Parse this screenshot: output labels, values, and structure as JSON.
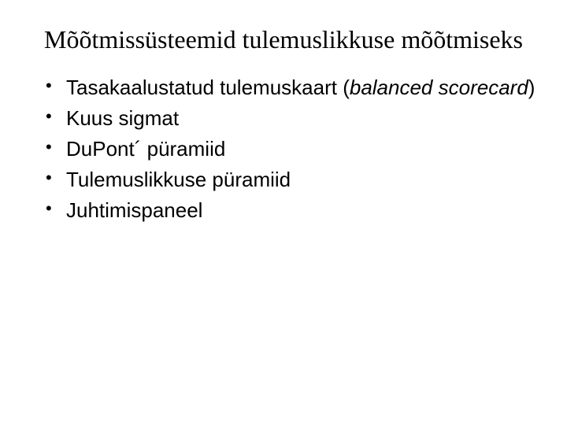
{
  "title": "Mõõtmissüsteemid tulemuslikkuse mõõtmiseks",
  "bullets": {
    "b0_leading": "Tasakaalustatud tulemuskaart (",
    "b0_italic": "balanced scorecard",
    "b0_trailing": ")",
    "b1": "Kuus sigmat",
    "b2": "DuPont´ püramiid",
    "b3": "Tulemuslikkuse püramiid",
    "b4": "Juhtimispaneel"
  },
  "style": {
    "background_color": "#ffffff",
    "text_color": "#000000",
    "title_font": "Times New Roman",
    "title_fontsize_pt": 32,
    "body_font": "Arial",
    "body_fontsize_pt": 26
  }
}
